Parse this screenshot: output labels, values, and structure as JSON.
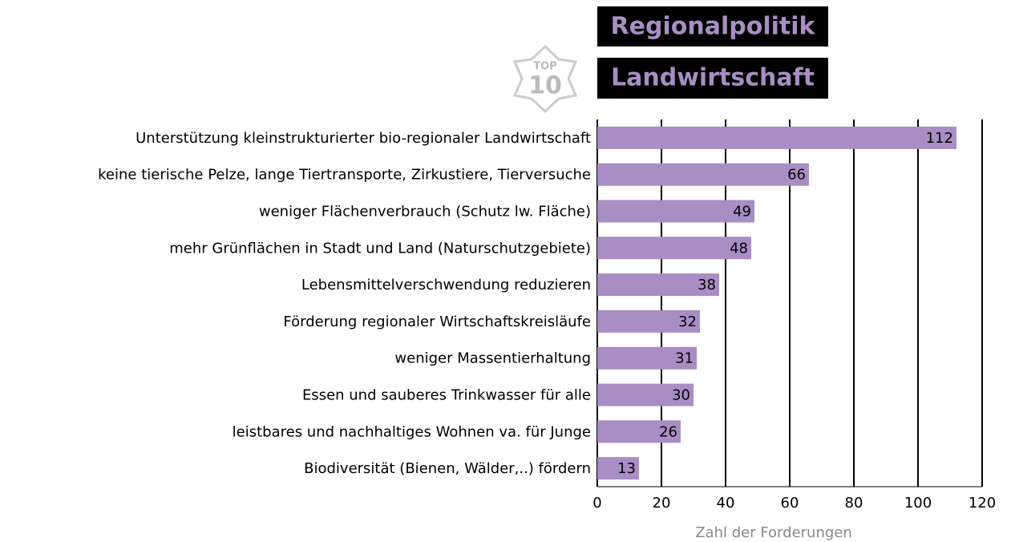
{
  "badge": {
    "top": "TOP",
    "number": "10"
  },
  "chart_data": {
    "type": "bar",
    "orientation": "horizontal",
    "title": "Regionalpolitik",
    "subtitle": "Landwirtschaft",
    "categories": [
      "Unterstützung kleinstrukturierter bio-regionaler Landwirtschaft",
      "keine tierische Pelze, lange Tiertransporte, Zirkustiere, Tierversuche",
      "weniger Flächenverbrauch (Schutz lw. Fläche)",
      "mehr Grünflächen in Stadt und Land (Naturschutzgebiete)",
      "Lebensmittelverschwendung reduzieren",
      "Förderung regionaler Wirtschaftskreisläufe",
      "weniger Massentierhaltung",
      "Essen und sauberes Trinkwasser für alle",
      "leistbares und nachhaltiges Wohnen va. für Junge",
      "Biodiversität (Bienen, Wälder,..) fördern"
    ],
    "values": [
      112,
      66,
      49,
      48,
      38,
      32,
      31,
      30,
      26,
      13
    ],
    "color": "#a98dc5",
    "xlabel": "Zahl der Forderungen",
    "xlim": [
      0,
      120
    ],
    "xticks": [
      0,
      20,
      40,
      60,
      80,
      100,
      120
    ],
    "grid": true
  }
}
